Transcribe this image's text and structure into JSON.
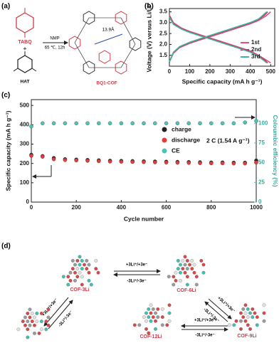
{
  "panel_labels": [
    "(a)",
    "(b)",
    "(c)",
    "(d)"
  ],
  "scheme": {
    "reactant1": "TABQ",
    "reactant2": "HAT",
    "conditions": [
      "NMP",
      "65 ℃, 12h"
    ],
    "product": "BQ1-COF",
    "pore_size": "13.9Å"
  },
  "chart_data": [
    {
      "type": "line",
      "xlabel": "Specific capacity (mA h g⁻¹)",
      "ylabel": "Voltage (V) versus Li/Li⁺",
      "xlim": [
        0,
        520
      ],
      "xticks": [
        0,
        100,
        200,
        300,
        400,
        500
      ],
      "ylim": [
        1.0,
        3.65
      ],
      "yticks": [
        1.5,
        {
          "value": 2,
          "label": "2.0"
        },
        2.5,
        {
          "value": 3,
          "label": "3.0"
        },
        3.5
      ],
      "legend": "right",
      "series": [
        {
          "name": "1st",
          "color": "#e0507a",
          "x": [
            0,
            20,
            60,
            100,
            150,
            200,
            250,
            300,
            350,
            400,
            440,
            475,
            500,
            null,
            0,
            20,
            50,
            100,
            150,
            200,
            250,
            300,
            350,
            400,
            440,
            475,
            500
          ],
          "values": [
            3.35,
            3.0,
            2.75,
            2.6,
            2.45,
            2.3,
            2.15,
            2.0,
            1.85,
            1.7,
            1.5,
            1.3,
            1.15,
            null,
            1.2,
            1.6,
            1.85,
            2.05,
            2.2,
            2.35,
            2.5,
            2.65,
            2.8,
            2.95,
            3.1,
            3.3,
            3.5
          ]
        },
        {
          "name": "2nd",
          "color": "#c8304f",
          "x": [
            0,
            20,
            60,
            100,
            150,
            200,
            250,
            300,
            350,
            400,
            440,
            470,
            485,
            null,
            0,
            20,
            50,
            100,
            150,
            200,
            250,
            300,
            350,
            400,
            440,
            470,
            485
          ],
          "values": [
            3.3,
            2.95,
            2.72,
            2.57,
            2.42,
            2.27,
            2.12,
            1.97,
            1.82,
            1.66,
            1.46,
            1.28,
            1.15,
            null,
            1.2,
            1.62,
            1.88,
            2.08,
            2.24,
            2.39,
            2.54,
            2.69,
            2.84,
            2.99,
            3.15,
            3.35,
            3.5
          ]
        },
        {
          "name": "3rd",
          "color": "#3bb5a8",
          "x": [
            0,
            20,
            60,
            100,
            150,
            200,
            250,
            300,
            350,
            400,
            440,
            465,
            480,
            null,
            0,
            20,
            50,
            100,
            150,
            200,
            250,
            300,
            350,
            400,
            440,
            465,
            480
          ],
          "values": [
            3.25,
            2.92,
            2.7,
            2.55,
            2.4,
            2.25,
            2.1,
            1.95,
            1.8,
            1.64,
            1.44,
            1.27,
            1.15,
            null,
            1.2,
            1.64,
            1.9,
            2.1,
            2.26,
            2.41,
            2.56,
            2.71,
            2.86,
            3.01,
            3.17,
            3.37,
            3.5
          ]
        }
      ]
    },
    {
      "type": "scatter",
      "xlabel": "Cycle number",
      "ylabel": "Specific capacity (mA h g⁻¹)",
      "y2label": "Coloumbic efficiency (%)",
      "annotation": "2 C (1.54 A g⁻¹)",
      "xlim": [
        0,
        1000
      ],
      "xticks": [
        0,
        200,
        400,
        600,
        800,
        1000
      ],
      "ylim": [
        0,
        530
      ],
      "yticks": [
        0,
        100,
        200,
        300,
        400,
        500
      ],
      "y2lim": [
        0,
        130
      ],
      "y2ticks": [
        0,
        25,
        50,
        75,
        100
      ],
      "legend": "center right",
      "x": [
        0,
        50,
        100,
        150,
        200,
        250,
        300,
        350,
        400,
        450,
        500,
        550,
        600,
        650,
        700,
        750,
        800,
        850,
        900,
        950,
        1000
      ],
      "series": [
        {
          "name": "charge",
          "color": "#222222",
          "values": [
            245,
            238,
            228,
            222,
            220,
            218,
            216,
            214,
            213,
            212,
            211,
            210,
            209,
            208,
            207,
            206,
            205,
            205,
            204,
            204,
            215
          ]
        },
        {
          "name": "discharge",
          "color": "#e23b3b",
          "values": [
            240,
            235,
            222,
            218,
            216,
            214,
            212,
            210,
            209,
            208,
            207,
            206,
            205,
            204,
            203,
            202,
            201,
            201,
            200,
            200,
            205
          ]
        },
        {
          "name": "CE",
          "color": "#4cc3b5",
          "axis": "y2",
          "values": [
            96,
            100,
            100,
            100,
            100,
            100,
            100,
            100,
            100,
            100,
            100,
            100,
            100,
            100,
            100,
            100,
            100,
            100,
            100,
            101,
            103
          ]
        }
      ]
    }
  ],
  "diagram": {
    "nodes": [
      {
        "label": "COF-3Li"
      },
      {
        "label": "COF-6Li"
      },
      {
        "label": "COF-9Li"
      },
      {
        "label": "COF-12Li"
      }
    ],
    "edges": [
      {
        "forward": "+3Li⁺/+3e⁻",
        "reverse": "-3Li⁺/-3e⁻"
      },
      {
        "forward": "+3Li⁺/+3e⁻",
        "reverse": "-3Li⁺/-3e⁻"
      },
      {
        "forward": "+3Li⁺/+3e⁻",
        "reverse": "-3Li⁺/-3e⁻"
      },
      {
        "forward": "+3Li⁺/+3e⁻",
        "reverse": "-3Li⁺/-3e⁻"
      }
    ]
  }
}
